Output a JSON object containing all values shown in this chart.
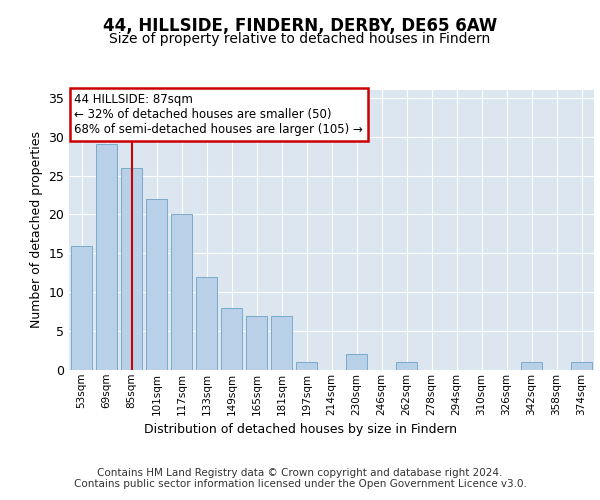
{
  "title": "44, HILLSIDE, FINDERN, DERBY, DE65 6AW",
  "subtitle": "Size of property relative to detached houses in Findern",
  "xlabel": "Distribution of detached houses by size in Findern",
  "ylabel": "Number of detached properties",
  "categories": [
    "53sqm",
    "69sqm",
    "85sqm",
    "101sqm",
    "117sqm",
    "133sqm",
    "149sqm",
    "165sqm",
    "181sqm",
    "197sqm",
    "214sqm",
    "230sqm",
    "246sqm",
    "262sqm",
    "278sqm",
    "294sqm",
    "310sqm",
    "326sqm",
    "342sqm",
    "358sqm",
    "374sqm"
  ],
  "values": [
    16,
    29,
    26,
    22,
    20,
    12,
    8,
    7,
    7,
    1,
    0,
    2,
    0,
    1,
    0,
    0,
    0,
    0,
    1,
    0,
    1
  ],
  "bar_color": "#b8d0e8",
  "bar_edge_color": "#7aaac8",
  "vline_x": 2,
  "vline_color": "#cc0000",
  "annotation_text": "44 HILLSIDE: 87sqm\n← 32% of detached houses are smaller (50)\n68% of semi-detached houses are larger (105) →",
  "annotation_box_color": "#ffffff",
  "annotation_box_edge_color": "#cc0000",
  "ylim": [
    0,
    36
  ],
  "yticks": [
    0,
    5,
    10,
    15,
    20,
    25,
    30,
    35
  ],
  "plot_bg_color": "#dce6f0",
  "footer_text": "Contains HM Land Registry data © Crown copyright and database right 2024.\nContains public sector information licensed under the Open Government Licence v3.0.",
  "title_fontsize": 12,
  "subtitle_fontsize": 10,
  "xlabel_fontsize": 9,
  "ylabel_fontsize": 9,
  "footer_fontsize": 7.5
}
